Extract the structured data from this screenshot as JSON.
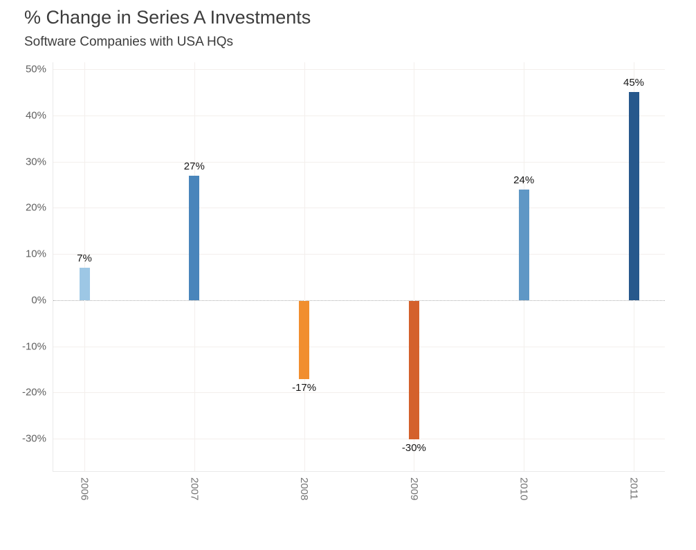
{
  "header": {
    "title": "% Change in Series A Investments",
    "subtitle": "Software Companies with USA HQs"
  },
  "chart_data": {
    "type": "bar",
    "title": "% Change in Series A Investments",
    "subtitle": "Software Companies with USA HQs",
    "categories": [
      "2006",
      "2007",
      "2008",
      "2009",
      "2010",
      "2011"
    ],
    "values": [
      7,
      27,
      -17,
      -30,
      24,
      45
    ],
    "bar_labels": [
      "7%",
      "27%",
      "-17%",
      "-30%",
      "24%",
      "45%"
    ],
    "bar_colors": [
      "#9dc7e5",
      "#4985bb",
      "#f18e2e",
      "#d4612c",
      "#5f97c5",
      "#27588c"
    ],
    "xlabel": "",
    "ylabel": "",
    "yticks": [
      50,
      40,
      30,
      20,
      10,
      0,
      -10,
      -20,
      -30
    ],
    "ytick_labels": [
      "50%",
      "40%",
      "30%",
      "20%",
      "10%",
      "0%",
      "-10%",
      "-20%",
      "-30%"
    ],
    "ylim": [
      -37,
      51.5
    ],
    "grid": true,
    "zero_line": "dotted",
    "legend": "none",
    "x_tick_rotation_deg": 90,
    "style": {
      "title_color": "#3c3c3c",
      "grid_color": "#f3efec",
      "zero_line_color": "#ababab",
      "axis_line_color": "#e9e9e9",
      "ytick_color": "#606060",
      "xtick_color": "#737373",
      "value_label_color": "#141414",
      "background_color": "#ffffff"
    }
  }
}
